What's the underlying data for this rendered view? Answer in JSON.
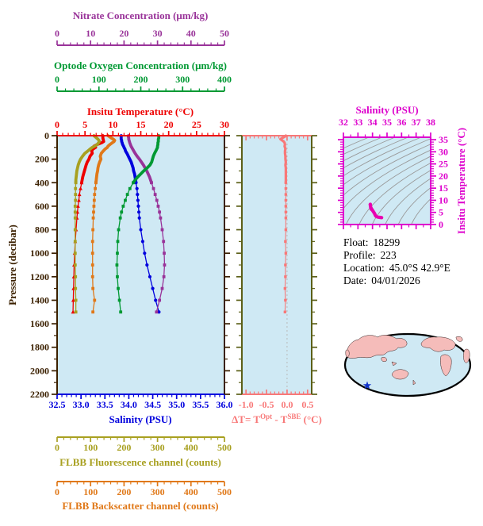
{
  "colors": {
    "nitrate": "#993399",
    "oxygen": "#009933",
    "temperature": "#ee0000",
    "salinity": "#0000dd",
    "fluorescence": "#a8a020",
    "backscatter": "#e07818",
    "frame": "#3b2000",
    "plot_bg": "#cfe9f4",
    "delta": "#f87878",
    "delta_frame": "#5c6018",
    "magenta": "#dd00cc",
    "ts_curve": "#e800b0",
    "contour": "#9a9a9a",
    "zero_line": "#b8b8b8",
    "map_land": "#f5bcba",
    "map_ocean": "#cfe9f4",
    "map_outline": "#000000",
    "map_star": "#1133cc",
    "info_text": "#000000"
  },
  "axes": {
    "nitrate": {
      "title": "Nitrate Concentration (μm/kg)",
      "ticks": [
        "0",
        "10",
        "20",
        "30",
        "40",
        "50"
      ],
      "min": 0,
      "max": 50
    },
    "oxygen": {
      "title": "Optode Oxygen Concentration (μm/kg)",
      "ticks": [
        "0",
        "100",
        "200",
        "300",
        "400"
      ],
      "min": 0,
      "max": 400
    },
    "temperature": {
      "title": "Insitu Temperature (°C)",
      "ticks": [
        "0",
        "5",
        "10",
        "15",
        "20",
        "25",
        "30"
      ],
      "min": 0,
      "max": 30
    },
    "pressure": {
      "title": "Pressure (decibar)",
      "ticks": [
        "0",
        "200",
        "400",
        "600",
        "800",
        "1000",
        "1200",
        "1400",
        "1600",
        "1800",
        "2000",
        "2200"
      ],
      "min": 0,
      "max": 2200
    },
    "salinity": {
      "title": "Salinity (PSU)",
      "ticks": [
        "32.5",
        "33.0",
        "33.5",
        "34.0",
        "34.5",
        "35.0",
        "35.5",
        "36.0"
      ],
      "min": 32.5,
      "max": 36.0
    },
    "fluorescence": {
      "title": "FLBB Fluorescence channel (counts)",
      "ticks": [
        "0",
        "100",
        "200",
        "300",
        "400",
        "500"
      ],
      "min": 0,
      "max": 500
    },
    "backscatter": {
      "title": "FLBB Backscatter channel (counts)",
      "ticks": [
        "0",
        "100",
        "200",
        "300",
        "400",
        "500"
      ],
      "min": 0,
      "max": 500
    },
    "delta_t": {
      "title_parts": [
        "ΔT= T",
        "Opt",
        " - T",
        "SBE",
        " (°C)"
      ],
      "ticks": [
        "-1.0",
        "-0.5",
        "0.0",
        "0.5"
      ],
      "min": -1.1,
      "max": 0.6
    },
    "ts_salinity": {
      "title": "Salinity (PSU)",
      "ticks": [
        "32",
        "33",
        "34",
        "35",
        "36",
        "37",
        "38"
      ],
      "min": 32,
      "max": 38
    },
    "ts_temperature": {
      "title": "Insitu Temperature (°C)",
      "ticks": [
        "0",
        "5",
        "10",
        "15",
        "20",
        "25",
        "30",
        "35"
      ],
      "min": 0,
      "max": 36
    }
  },
  "info": {
    "rows": [
      {
        "label": "Float:",
        "value": "18299"
      },
      {
        "label": "Profile:",
        "value": "223"
      },
      {
        "label": "Location:",
        "value": "45.0°S  42.9°E"
      },
      {
        "label": "Date:",
        "value": "04/01/2026"
      }
    ]
  },
  "map": {
    "marker_symbol": "star"
  },
  "chart_data": {
    "type": "line",
    "title": "Profiling float vertical profiles vs pressure",
    "pressure_range": [
      0,
      2200
    ],
    "pressure_dbar": [
      0,
      10,
      20,
      30,
      40,
      50,
      60,
      75,
      90,
      100,
      115,
      130,
      150,
      175,
      200,
      225,
      250,
      275,
      300,
      325,
      350,
      375,
      400,
      450,
      500,
      550,
      600,
      650,
      700,
      800,
      900,
      1000,
      1100,
      1200,
      1300,
      1400,
      1500
    ],
    "series": [
      {
        "name": "Insitu Temperature",
        "units": "°C",
        "color_key": "temperature",
        "marker": "triangle",
        "axis_min": 0,
        "axis_max": 30,
        "values": [
          8.2,
          8.2,
          8.2,
          8.25,
          8.3,
          8.35,
          8.0,
          7.2,
          6.6,
          6.9,
          6.4,
          6.2,
          6.3,
          5.9,
          5.7,
          5.4,
          5.2,
          5.05,
          4.9,
          4.75,
          4.6,
          4.5,
          4.4,
          4.2,
          4.0,
          3.9,
          3.75,
          3.65,
          3.55,
          3.4,
          3.25,
          3.15,
          3.05,
          3.0,
          2.95,
          2.9,
          2.85
        ]
      },
      {
        "name": "Salinity",
        "units": "PSU",
        "color_key": "salinity",
        "marker": "circle",
        "axis_min": 32.5,
        "axis_max": 36.0,
        "values": [
          33.84,
          33.84,
          33.84,
          33.84,
          33.85,
          33.85,
          33.86,
          33.87,
          33.89,
          33.9,
          33.92,
          33.93,
          33.96,
          33.99,
          34.02,
          34.05,
          34.07,
          34.09,
          34.1,
          34.12,
          34.13,
          34.14,
          34.15,
          34.17,
          34.18,
          34.19,
          34.2,
          34.21,
          34.22,
          34.25,
          34.29,
          34.33,
          34.38,
          34.44,
          34.5,
          34.56,
          34.63
        ]
      },
      {
        "name": "Nitrate Concentration",
        "units": "μm/kg",
        "color_key": "nitrate",
        "marker": "square",
        "axis_min": 0,
        "axis_max": 50,
        "values": [
          21.3,
          21.3,
          21.4,
          21.4,
          21.5,
          21.6,
          21.7,
          21.9,
          22.1,
          22.3,
          22.6,
          22.9,
          23.3,
          23.9,
          24.6,
          25.2,
          25.8,
          26.3,
          26.8,
          27.2,
          27.6,
          27.9,
          28.2,
          28.8,
          29.3,
          29.8,
          30.2,
          30.6,
          30.9,
          31.4,
          31.8,
          32.0,
          32.1,
          31.9,
          31.4,
          30.6,
          29.7
        ]
      },
      {
        "name": "Optode Oxygen Concentration",
        "units": "μm/kg",
        "color_key": "oxygen",
        "marker": "square",
        "axis_min": 0,
        "axis_max": 400,
        "values": [
          243,
          243,
          243,
          242,
          242,
          242,
          241,
          241,
          240,
          240,
          238,
          236,
          233,
          230,
          228,
          226,
          222,
          215,
          207,
          200,
          193,
          187,
          182,
          174,
          168,
          163,
          158,
          154,
          151,
          147,
          145,
          144,
          143,
          144,
          146,
          149,
          152
        ]
      },
      {
        "name": "FLBB Fluorescence channel",
        "units": "counts",
        "color_key": "fluorescence",
        "marker": "square",
        "axis_min": 0,
        "axis_max": 500,
        "values": [
          110,
          114,
          118,
          122,
          125,
          126,
          124,
          120,
          112,
          105,
          98,
          92,
          83,
          76,
          70,
          66,
          63,
          61,
          59,
          58,
          57,
          56,
          56,
          55,
          55,
          55,
          54,
          54,
          54,
          54,
          54,
          54,
          54,
          55,
          55,
          56,
          56
        ]
      },
      {
        "name": "FLBB Backscatter channel",
        "units": "counts",
        "color_key": "backscatter",
        "marker": "square",
        "axis_min": 0,
        "axis_max": 500,
        "values": [
          152,
          157,
          162,
          168,
          172,
          170,
          165,
          158,
          152,
          150,
          143,
          138,
          132,
          129,
          131,
          127,
          124,
          122,
          121,
          119,
          118,
          117,
          116,
          114,
          112,
          111,
          110,
          109,
          108,
          107,
          106,
          106,
          106,
          106,
          107,
          112,
          107
        ]
      }
    ],
    "delta_t": {
      "name": "ΔT Optode minus SBE",
      "units": "°C",
      "marker": "square",
      "axis_min": -1.1,
      "axis_max": 0.6,
      "values": [
        -0.03,
        -0.06,
        -0.12,
        -0.16,
        -0.12,
        -0.08,
        -0.06,
        -0.05,
        -0.06,
        -0.05,
        -0.04,
        -0.05,
        -0.05,
        -0.04,
        -0.04,
        -0.03,
        -0.04,
        -0.03,
        -0.03,
        -0.03,
        -0.03,
        -0.03,
        -0.03,
        -0.03,
        -0.03,
        -0.03,
        -0.03,
        -0.03,
        -0.03,
        -0.03,
        -0.04,
        -0.03,
        -0.04,
        -0.04,
        -0.05,
        -0.04,
        -0.05
      ]
    },
    "ts_plot": {
      "salinity_range": [
        32,
        38
      ],
      "temperature_range": [
        0,
        36
      ],
      "isopycnals_sigma": [
        20.3,
        21.0,
        21.7,
        22.4,
        23.1,
        23.8,
        24.5,
        25.2,
        25.9,
        26.6,
        27.3,
        28.0,
        28.7,
        29.4
      ]
    }
  }
}
